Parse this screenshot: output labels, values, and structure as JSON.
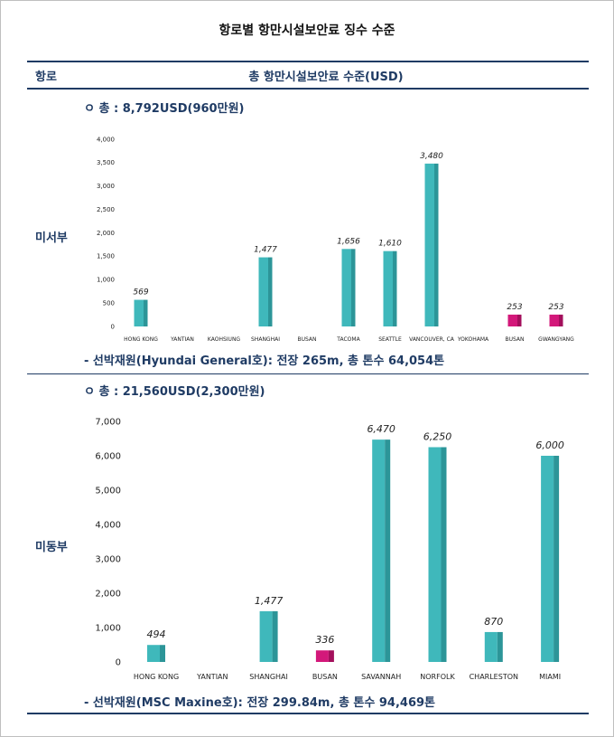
{
  "title": "항로별 항만시설보안료 징수 수준",
  "header": {
    "route_label": "항로",
    "fee_label": "총 항만시설보안료 수준(USD)"
  },
  "sections": [
    {
      "region": "미서부",
      "total": "ㅇ 총 : 8,792USD(960만원)",
      "ship": "- 선박재원(Hyundai General호): 전장 265m, 총 톤수 64,054톤"
    },
    {
      "region": "미동부",
      "total": "ㅇ 총 : 21,560USD(2,300만원)",
      "ship": "- 선박재원(MSC Maxine호): 전장 299.84m, 총 톤수 94,469톤"
    }
  ],
  "colors": {
    "teal": "#3fb8bb",
    "teal_dark": "#2c9598",
    "magenta": "#d3187a",
    "magenta_dark": "#a30f5c",
    "navy": "#1f3b64"
  },
  "chart_data": [
    {
      "type": "bar",
      "categories": [
        "HONG KONG",
        "YANTIAN",
        "KAOHSIUNG",
        "SHANGHAI",
        "BUSAN",
        "TACOMA",
        "SEATTLE",
        "VANCOUVER, CA",
        "YOKOHAMA",
        "BUSAN",
        "GWANGYANG"
      ],
      "values": [
        569,
        null,
        null,
        1477,
        null,
        1656,
        1610,
        3480,
        null,
        253,
        253
      ],
      "data_labels": [
        "569",
        "",
        "",
        "1,477",
        "",
        "1,656",
        "1,610",
        "3,480",
        "",
        "253",
        "253"
      ],
      "highlight": [
        false,
        false,
        false,
        false,
        false,
        false,
        false,
        false,
        false,
        true,
        true
      ],
      "yticks": [
        0,
        500,
        1000,
        1500,
        2000,
        2500,
        3000,
        3500,
        4000
      ],
      "ytick_labels": [
        "0",
        "500",
        "1,000",
        "1,500",
        "2,000",
        "2,500",
        "3,000",
        "3,500",
        "4,000"
      ],
      "ylim": [
        0,
        4000
      ],
      "grid": false,
      "legend": "none"
    },
    {
      "type": "bar",
      "categories": [
        "HONG KONG",
        "YANTIAN",
        "SHANGHAI",
        "BUSAN",
        "SAVANNAH",
        "NORFOLK",
        "CHARLESTON",
        "MIAMI"
      ],
      "values": [
        494,
        null,
        1477,
        336,
        6470,
        6250,
        870,
        6000
      ],
      "data_labels": [
        "494",
        "",
        "1,477",
        "336",
        "6,470",
        "6,250",
        "870",
        "6,000"
      ],
      "highlight": [
        false,
        false,
        false,
        true,
        false,
        false,
        false,
        false
      ],
      "yticks": [
        0,
        1000,
        2000,
        3000,
        4000,
        5000,
        6000,
        7000
      ],
      "ytick_labels": [
        "0",
        "1,000",
        "2,000",
        "3,000",
        "4,000",
        "5,000",
        "6,000",
        "7,000"
      ],
      "ylim": [
        0,
        7000
      ],
      "grid": false,
      "legend": "none"
    }
  ]
}
